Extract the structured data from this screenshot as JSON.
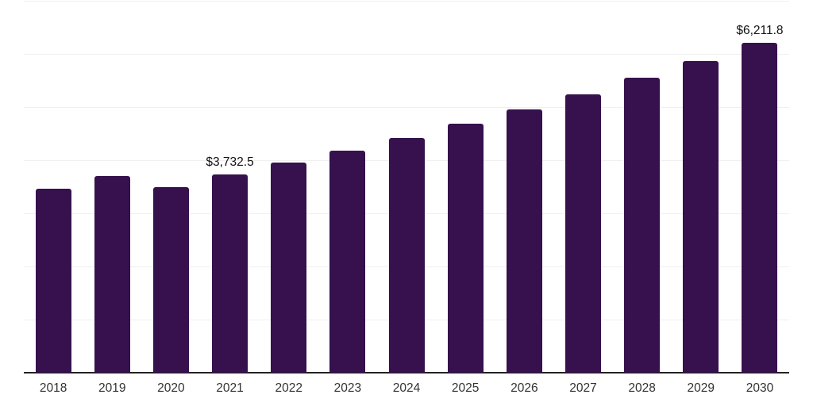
{
  "chart_data": {
    "type": "bar",
    "categories": [
      "2018",
      "2019",
      "2020",
      "2021",
      "2022",
      "2023",
      "2024",
      "2025",
      "2026",
      "2027",
      "2028",
      "2029",
      "2030"
    ],
    "values": [
      3465,
      3700,
      3500,
      3732.5,
      3950,
      4180,
      4420,
      4680,
      4950,
      5240,
      5550,
      5870,
      6211.8
    ],
    "point_labels": {
      "2021": "$3,732.5",
      "2030": "$6,211.8"
    },
    "xlabel": "",
    "ylabel": "",
    "ylim": [
      0,
      7000
    ],
    "gridline_step": 1000,
    "grid": "horizontal",
    "legend": "none",
    "colors": {
      "bar": "#36114d",
      "gridline": "#f0f0f0",
      "axis": "#222222",
      "tick_label": "#333333",
      "value_label": "#111111",
      "background": "#ffffff"
    }
  }
}
